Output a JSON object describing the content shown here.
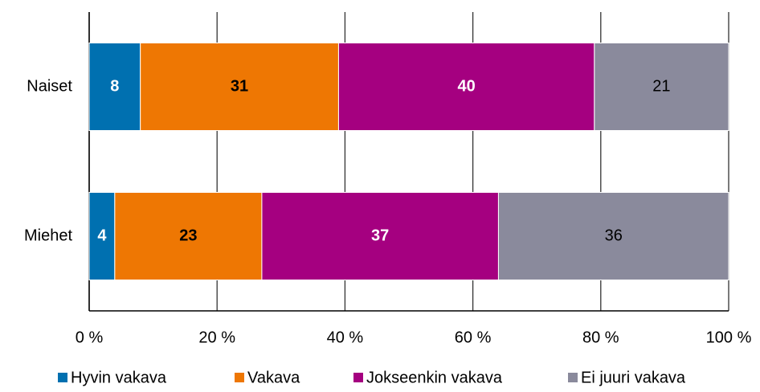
{
  "chart_data": {
    "type": "stacked-barh",
    "categories": [
      "Naiset",
      "Miehet"
    ],
    "series": [
      {
        "name": "Hyvin vakava",
        "color": "#0070b0",
        "label_color": "#ffffff",
        "label_bold": true,
        "values": [
          8,
          4
        ]
      },
      {
        "name": "Vakava",
        "color": "#ee7703",
        "label_color": "#000000",
        "label_bold": true,
        "values": [
          31,
          23
        ]
      },
      {
        "name": "Jokseenkin vakava",
        "color": "#a50080",
        "label_color": "#ffffff",
        "label_bold": true,
        "values": [
          40,
          37
        ]
      },
      {
        "name": "Ei juuri vakava",
        "color": "#8a8a9c",
        "label_color": "#000000",
        "label_bold": false,
        "values": [
          21,
          36
        ]
      }
    ],
    "xlim": [
      0,
      100
    ],
    "xticks": [
      {
        "value": 0,
        "label": "0 %"
      },
      {
        "value": 20,
        "label": "20 %"
      },
      {
        "value": 40,
        "label": "40 %"
      },
      {
        "value": 60,
        "label": "60 %"
      },
      {
        "value": 80,
        "label": "80 %"
      },
      {
        "value": 100,
        "label": "100 %"
      }
    ],
    "grid": true,
    "legend": "bottom"
  }
}
